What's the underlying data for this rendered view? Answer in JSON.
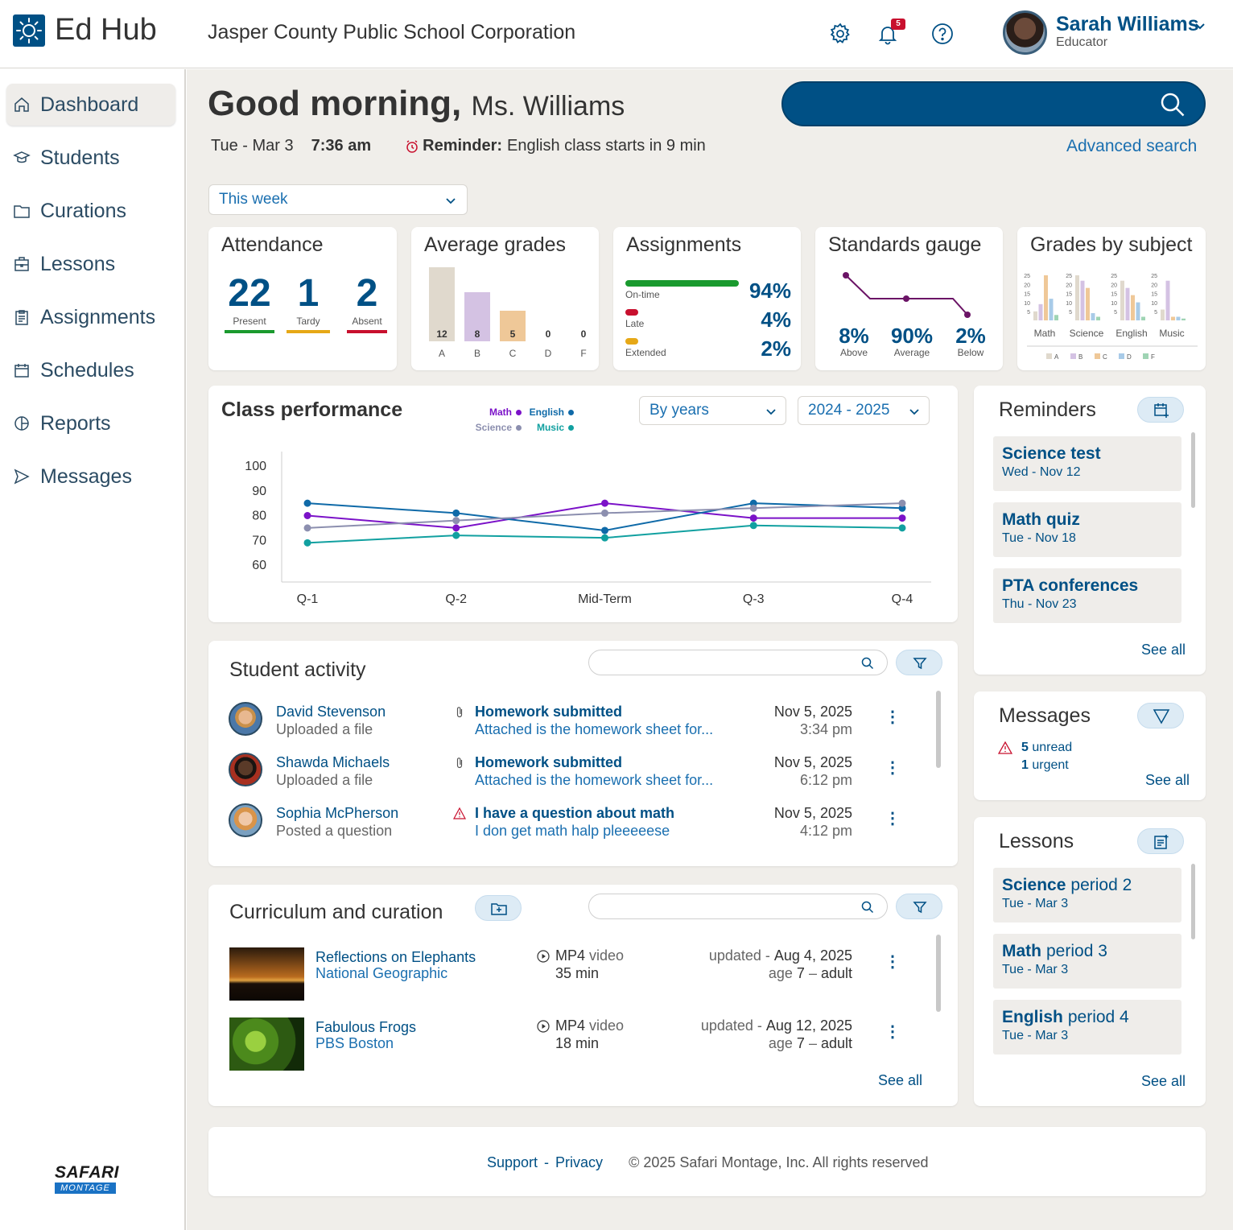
{
  "header": {
    "app_title": "Ed Hub",
    "org_name": "Jasper County Public School Corporation",
    "notifications_count": "5",
    "user_name": "Sarah Williams",
    "user_role": "Educator"
  },
  "sidebar": {
    "items": [
      {
        "label": "Dashboard",
        "icon": "home-icon",
        "active": true
      },
      {
        "label": "Students",
        "icon": "graduation-cap-icon"
      },
      {
        "label": "Curations",
        "icon": "folder-icon"
      },
      {
        "label": "Lessons",
        "icon": "briefcase-icon"
      },
      {
        "label": "Assignments",
        "icon": "clipboard-icon"
      },
      {
        "label": "Schedules",
        "icon": "calendar-icon"
      },
      {
        "label": "Reports",
        "icon": "pie-chart-icon"
      },
      {
        "label": "Messages",
        "icon": "send-icon"
      }
    ],
    "footer_logo_top": "SAFARI",
    "footer_logo_bottom": "MONTAGE"
  },
  "greeting": {
    "hello": "Good morning,",
    "name": "Ms. Williams",
    "date": "Tue - Mar 3",
    "time": "7:36 am",
    "reminder_label": "Reminder:",
    "reminder_text": "English class starts in 9 min",
    "advanced_search": "Advanced search"
  },
  "period_select": "This week",
  "attendance": {
    "title": "Attendance",
    "present": "22",
    "present_label": "Present",
    "tardy": "1",
    "tardy_label": "Tardy",
    "absent": "2",
    "absent_label": "Absent"
  },
  "average_grades": {
    "title": "Average grades",
    "bars": [
      {
        "grade": "A",
        "value": 12,
        "color": "#e0d9cd"
      },
      {
        "grade": "B",
        "value": 8,
        "color": "#d4c2e3"
      },
      {
        "grade": "C",
        "value": 5,
        "color": "#efc898"
      },
      {
        "grade": "D",
        "value": 0,
        "color": "#cccccc"
      },
      {
        "grade": "F",
        "value": 0,
        "color": "#cccccc"
      }
    ]
  },
  "assignments": {
    "title": "Assignments",
    "rows": [
      {
        "label": "On-time",
        "value": "94%",
        "fraction": 0.94,
        "color": "#1a9a2e"
      },
      {
        "label": "Late",
        "value": "4%",
        "fraction": 0.04,
        "color": "#c8102e"
      },
      {
        "label": "Extended",
        "value": "2%",
        "fraction": 0.02,
        "color": "#e6a817"
      }
    ]
  },
  "standards_gauge": {
    "title": "Standards gauge",
    "items": [
      {
        "value": "8%",
        "label": "Above"
      },
      {
        "value": "90%",
        "label": "Average"
      },
      {
        "value": "2%",
        "label": "Below"
      }
    ]
  },
  "grades_by_subject": {
    "title": "Grades by subject",
    "y_ticks": [
      "25",
      "20",
      "15",
      "10",
      "5"
    ],
    "subjects": [
      "Math",
      "Science",
      "English",
      "Music"
    ],
    "legend": [
      "A",
      "B",
      "C",
      "D",
      "F"
    ],
    "legend_colors": [
      "#e0d9cd",
      "#d4c2e3",
      "#efc898",
      "#a8cbe8",
      "#9fd4b4"
    ],
    "values": [
      [
        5,
        9,
        25,
        12,
        3
      ],
      [
        25,
        22,
        18,
        4,
        2
      ],
      [
        22,
        18,
        14,
        10,
        2
      ],
      [
        6,
        22,
        2,
        2,
        1
      ]
    ]
  },
  "class_performance": {
    "title": "Class performance",
    "view_select": "By years",
    "year_select": "2024 - 2025"
  },
  "chart_data": {
    "type": "line",
    "title": "Class performance",
    "categories": [
      "Q-1",
      "Q-2",
      "Mid-Term",
      "Q-3",
      "Q-4"
    ],
    "ylim": [
      60,
      100
    ],
    "y_ticks": [
      "100",
      "90",
      "80",
      "70",
      "60"
    ],
    "series": [
      {
        "name": "Math",
        "color": "#7b12c8",
        "values": [
          80,
          75,
          85,
          79,
          79
        ]
      },
      {
        "name": "English",
        "color": "#0f6aa8",
        "values": [
          85,
          81,
          74,
          85,
          83
        ]
      },
      {
        "name": "Science",
        "color": "#8c8faf",
        "values": [
          75,
          78,
          81,
          83,
          85
        ]
      },
      {
        "name": "Music",
        "color": "#11a0a0",
        "values": [
          69,
          72,
          71,
          76,
          75
        ]
      }
    ]
  },
  "student_activity": {
    "title": "Student activity",
    "rows": [
      {
        "name": "David Stevenson",
        "action": "Uploaded a file",
        "icon": "paperclip-icon",
        "title": "Homework submitted",
        "detail": "Attached is the homework sheet for...",
        "date": "Nov 5, 2025",
        "time": "3:34 pm"
      },
      {
        "name": "Shawda Michaels",
        "action": "Uploaded a file",
        "icon": "paperclip-icon",
        "title": "Homework submitted",
        "detail": "Attached is the homework sheet for...",
        "date": "Nov 5, 2025",
        "time": "6:12 pm"
      },
      {
        "name": "Sophia McPherson",
        "action": "Posted a question",
        "icon": "warning-icon",
        "title": "I have a question about math",
        "detail": "I don get math halp pleeeeese",
        "date": "Nov 5, 2025",
        "time": "4:12 pm"
      }
    ]
  },
  "curriculum": {
    "title": "Curriculum and curation",
    "see_all": "See all",
    "rows": [
      {
        "title": "Reflections on Elephants",
        "source": "National Geographic",
        "format": "MP4",
        "format_type": "video",
        "duration": "35 min",
        "updated_label": "updated -",
        "updated": "Aug 4, 2025",
        "age_label": "age",
        "age_from": "7",
        "age_to": "adult"
      },
      {
        "title": "Fabulous Frogs",
        "source": "PBS Boston",
        "format": "MP4",
        "format_type": "video",
        "duration": "18 min",
        "updated_label": "updated -",
        "updated": "Aug 12, 2025",
        "age_label": "age",
        "age_from": "7",
        "age_to": "adult"
      }
    ]
  },
  "reminders": {
    "title": "Reminders",
    "see_all": "See all",
    "items": [
      {
        "title": "Science test",
        "date": "Wed - Nov 12"
      },
      {
        "title": "Math quiz",
        "date": "Tue - Nov 18"
      },
      {
        "title": "PTA conferences",
        "date": "Thu - Nov 23"
      }
    ]
  },
  "messages": {
    "title": "Messages",
    "unread_count": "5",
    "unread_label": "unread",
    "urgent_count": "1",
    "urgent_label": "urgent",
    "see_all": "See all"
  },
  "lessons": {
    "title": "Lessons",
    "see_all": "See all",
    "items": [
      {
        "subject": "Science",
        "period": "period 2",
        "date": "Tue - Mar 3"
      },
      {
        "subject": "Math",
        "period": "period 3",
        "date": "Tue - Mar 3"
      },
      {
        "subject": "English",
        "period": "period 4",
        "date": "Tue - Mar 3"
      }
    ]
  },
  "footer": {
    "support": "Support",
    "separator": "-",
    "privacy": "Privacy",
    "copyright": "© 2025 Safari Montage, Inc. All rights reserved"
  }
}
